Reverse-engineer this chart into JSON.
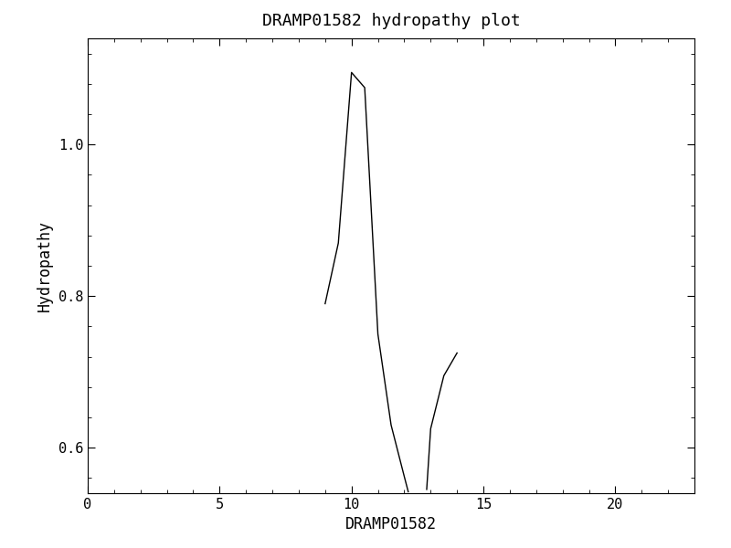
{
  "title": "DRAMP01582 hydropathy plot",
  "xlabel": "DRAMP01582",
  "ylabel": "Hydropathy",
  "segments": [
    {
      "x": [
        9.0,
        9.5,
        10.0,
        10.5,
        11.0,
        11.5,
        12.0,
        12.15
      ],
      "y": [
        0.79,
        0.87,
        1.095,
        1.075,
        0.75,
        0.63,
        0.562,
        0.542
      ]
    },
    {
      "x": [
        12.85,
        13.0,
        13.5,
        14.0
      ],
      "y": [
        0.545,
        0.625,
        0.695,
        0.725
      ]
    }
  ],
  "xlim": [
    0,
    23
  ],
  "ylim": [
    0.54,
    1.14
  ],
  "xticks": [
    0,
    5,
    10,
    15,
    20
  ],
  "yticks": [
    0.6,
    0.8,
    1.0
  ],
  "line_color": "black",
  "line_width": 1.0,
  "bg_color": "white",
  "title_fontsize": 13,
  "label_fontsize": 12,
  "tick_fontsize": 11,
  "font_family": "monospace"
}
